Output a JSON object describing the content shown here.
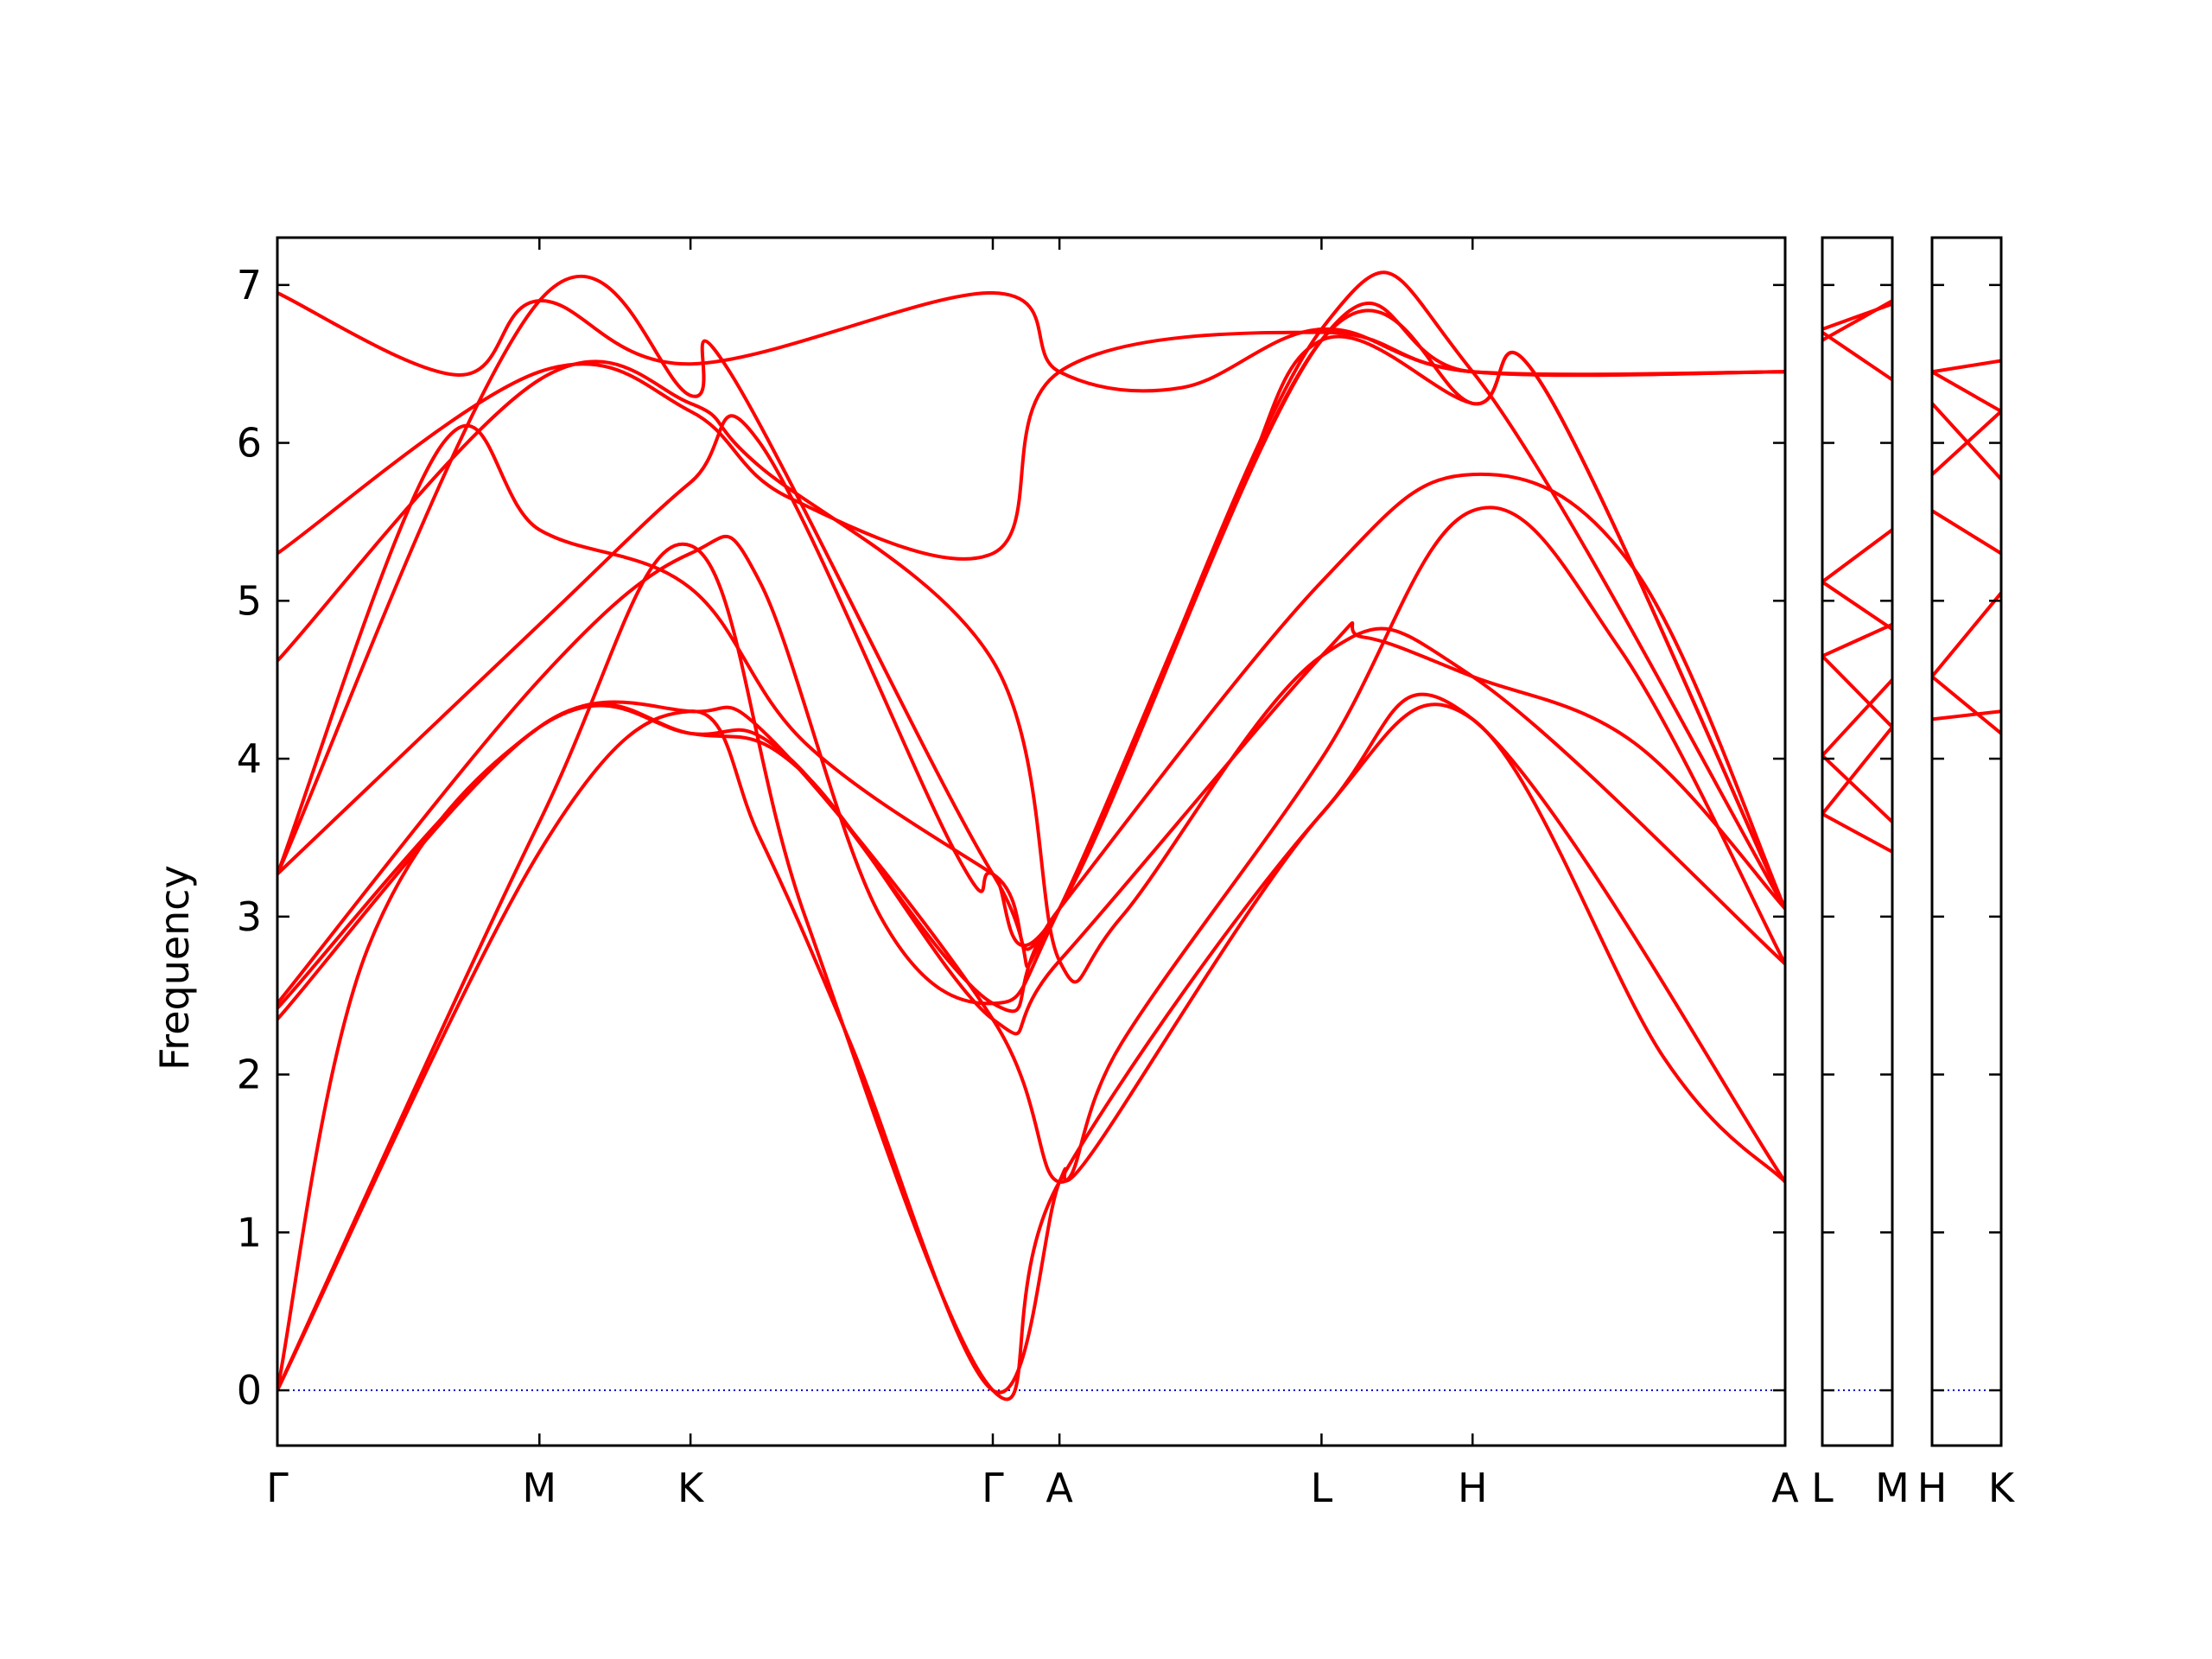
{
  "chart_data": {
    "type": "line",
    "ylabel": "Frequency",
    "xlabel": "",
    "title": "",
    "ylim": [
      -0.35,
      7.3
    ],
    "yticks": [
      0,
      1,
      2,
      3,
      4,
      5,
      6,
      7
    ],
    "grid": false,
    "legend": "none",
    "colors": {
      "bands": "#ff0000",
      "zero_line": "#0000cc",
      "axes": "#000000"
    },
    "panels": [
      {
        "id": "main",
        "x_range": [
          0,
          10.0
        ],
        "points": [
          {
            "label": "Γ",
            "x": 0.0
          },
          {
            "label": "M",
            "x": 1.738
          },
          {
            "label": "K",
            "x": 2.74
          },
          {
            "label": "Γ",
            "x": 4.745
          },
          {
            "label": "A",
            "x": 5.187
          },
          {
            "label": "L",
            "x": 6.925
          },
          {
            "label": "H",
            "x": 7.927
          },
          {
            "label": "A",
            "x": 10.0
          }
        ],
        "series": [
          {
            "values": [
              [
                0.0,
                0.0
              ],
              [
                1.738,
                3.41
              ],
              [
                2.74,
                4.3
              ],
              [
                3.2,
                3.5
              ],
              [
                3.8,
                2.2
              ],
              [
                4.745,
                0.0
              ],
              [
                5.187,
                1.32
              ],
              [
                5.4,
                1.5
              ],
              [
                6.925,
                3.65
              ],
              [
                7.927,
                4.25
              ],
              [
                9.2,
                2.1
              ],
              [
                10.0,
                1.32
              ]
            ]
          },
          {
            "values": [
              [
                0.0,
                0.0
              ],
              [
                1.738,
                3.6
              ],
              [
                2.74,
                5.35
              ],
              [
                3.5,
                3.0
              ],
              [
                4.745,
                0.0
              ],
              [
                5.187,
                1.32
              ],
              [
                6.925,
                3.65
              ],
              [
                7.927,
                4.25
              ],
              [
                10.0,
                1.32
              ]
            ]
          },
          {
            "values": [
              [
                0.0,
                0.0
              ],
              [
                0.6,
                2.8
              ],
              [
                1.738,
                4.2
              ],
              [
                2.74,
                4.3
              ],
              [
                3.3,
                4.1
              ],
              [
                4.745,
                2.35
              ],
              [
                5.187,
                1.32
              ],
              [
                5.6,
                2.2
              ],
              [
                6.925,
                4.0
              ],
              [
                7.927,
                5.57
              ],
              [
                8.9,
                4.7
              ],
              [
                10.0,
                2.7
              ]
            ]
          },
          {
            "values": [
              [
                0.0,
                2.35
              ],
              [
                1.738,
                4.2
              ],
              [
                2.74,
                4.16
              ],
              [
                3.5,
                3.9
              ],
              [
                4.745,
                2.35
              ],
              [
                5.187,
                2.72
              ],
              [
                6.925,
                4.65
              ],
              [
                7.2,
                4.77
              ],
              [
                7.927,
                4.52
              ],
              [
                9.0,
                4.1
              ],
              [
                10.0,
                3.05
              ]
            ]
          },
          {
            "values": [
              [
                0.0,
                2.42
              ],
              [
                1.738,
                4.2
              ],
              [
                2.74,
                4.16
              ],
              [
                3.4,
                4.0
              ],
              [
                4.745,
                2.45
              ],
              [
                5.187,
                3.05
              ],
              [
                6.925,
                5.12
              ],
              [
                7.927,
                5.8
              ],
              [
                9.0,
                5.2
              ],
              [
                10.0,
                3.05
              ]
            ]
          },
          {
            "values": [
              [
                0.0,
                2.45
              ],
              [
                1.738,
                4.5
              ],
              [
                2.74,
                5.3
              ],
              [
                3.2,
                5.12
              ],
              [
                4.0,
                3.0
              ],
              [
                4.745,
                2.45
              ],
              [
                5.187,
                3.05
              ],
              [
                6.3,
                5.5
              ],
              [
                6.925,
                6.65
              ],
              [
                7.927,
                6.25
              ],
              [
                8.4,
                6.35
              ],
              [
                10.0,
                3.05
              ]
            ]
          },
          {
            "values": [
              [
                0.0,
                3.27
              ],
              [
                1.1,
                6.0
              ],
              [
                1.738,
                5.45
              ],
              [
                2.74,
                5.08
              ],
              [
                3.5,
                4.1
              ],
              [
                4.745,
                3.27
              ],
              [
                5.187,
                3.05
              ],
              [
                6.925,
                6.65
              ],
              [
                7.927,
                6.25
              ],
              [
                8.4,
                6.35
              ],
              [
                10.0,
                3.05
              ]
            ]
          },
          {
            "values": [
              [
                0.0,
                3.27
              ],
              [
                1.738,
                4.85
              ],
              [
                2.74,
                5.75
              ],
              [
                3.2,
                6.0
              ],
              [
                4.5,
                3.4
              ],
              [
                4.745,
                3.27
              ],
              [
                5.187,
                3.05
              ],
              [
                6.925,
                6.65
              ],
              [
                7.927,
                6.45
              ],
              [
                10.0,
                6.45
              ]
            ]
          },
          {
            "values": [
              [
                0.0,
                4.62
              ],
              [
                1.738,
                6.4
              ],
              [
                2.74,
                6.25
              ],
              [
                3.2,
                5.85
              ],
              [
                4.745,
                4.62
              ],
              [
                5.187,
                2.72
              ],
              [
                5.6,
                3.0
              ],
              [
                6.925,
                4.65
              ],
              [
                7.927,
                4.52
              ],
              [
                10.0,
                2.7
              ]
            ]
          },
          {
            "values": [
              [
                0.0,
                5.3
              ],
              [
                1.738,
                6.45
              ],
              [
                2.74,
                6.2
              ],
              [
                3.4,
                5.65
              ],
              [
                4.745,
                5.3
              ],
              [
                5.187,
                6.45
              ],
              [
                6.925,
                6.7
              ],
              [
                7.927,
                6.45
              ],
              [
                10.0,
                6.45
              ]
            ]
          },
          {
            "values": [
              [
                0.0,
                6.95
              ],
              [
                1.2,
                6.43
              ],
              [
                1.738,
                6.9
              ],
              [
                2.74,
                6.5
              ],
              [
                4.745,
                6.95
              ],
              [
                5.187,
                6.45
              ],
              [
                6.0,
                6.35
              ],
              [
                6.925,
                6.72
              ],
              [
                7.927,
                6.45
              ],
              [
                10.0,
                6.45
              ]
            ]
          },
          {
            "values": [
              [
                0.0,
                3.27
              ],
              [
                1.738,
                6.9
              ],
              [
                2.74,
                6.3
              ],
              [
                3.0,
                6.45
              ],
              [
                4.745,
                3.27
              ],
              [
                5.187,
                3.05
              ],
              [
                6.925,
                6.72
              ],
              [
                7.927,
                6.45
              ],
              [
                10.0,
                3.05
              ]
            ]
          }
        ]
      },
      {
        "id": "LM",
        "x_range": [
          0,
          1
        ],
        "points": [
          {
            "label": "L",
            "x": 0.0
          },
          {
            "label": "M",
            "x": 1.0
          }
        ],
        "series": [
          {
            "values": [
              [
                0,
                3.65
              ],
              [
                1,
                3.41
              ]
            ]
          },
          {
            "values": [
              [
                0,
                3.65
              ],
              [
                1,
                4.2
              ]
            ]
          },
          {
            "values": [
              [
                0,
                4.02
              ],
              [
                1,
                3.6
              ]
            ]
          },
          {
            "values": [
              [
                0,
                4.02
              ],
              [
                1,
                4.5
              ]
            ]
          },
          {
            "values": [
              [
                0,
                4.65
              ],
              [
                1,
                4.2
              ]
            ]
          },
          {
            "values": [
              [
                0,
                4.65
              ],
              [
                1,
                4.85
              ]
            ]
          },
          {
            "values": [
              [
                0,
                5.12
              ],
              [
                1,
                4.82
              ]
            ]
          },
          {
            "values": [
              [
                0,
                5.12
              ],
              [
                1,
                5.45
              ]
            ]
          },
          {
            "values": [
              [
                0,
                6.65
              ],
              [
                1,
                6.9
              ]
            ]
          },
          {
            "values": [
              [
                0,
                6.7
              ],
              [
                1,
                6.4
              ]
            ]
          },
          {
            "values": [
              [
                0,
                6.72
              ],
              [
                1,
                6.88
              ]
            ]
          }
        ]
      },
      {
        "id": "HK",
        "x_range": [
          0,
          1
        ],
        "points": [
          {
            "label": "H",
            "x": 0.0
          },
          {
            "label": "K",
            "x": 1.0
          }
        ],
        "series": [
          {
            "values": [
              [
                0,
                4.25
              ],
              [
                1,
                4.3
              ]
            ]
          },
          {
            "values": [
              [
                0,
                4.52
              ],
              [
                1,
                4.16
              ]
            ]
          },
          {
            "values": [
              [
                0,
                4.52
              ],
              [
                1,
                5.05
              ]
            ]
          },
          {
            "values": [
              [
                0,
                5.57
              ],
              [
                1,
                5.3
              ]
            ]
          },
          {
            "values": [
              [
                0,
                5.8
              ],
              [
                1,
                6.2
              ]
            ]
          },
          {
            "values": [
              [
                0,
                6.25
              ],
              [
                1,
                5.77
              ]
            ]
          },
          {
            "values": [
              [
                0,
                6.45
              ],
              [
                1,
                6.2
              ]
            ]
          },
          {
            "values": [
              [
                0,
                6.45
              ],
              [
                1,
                6.52
              ]
            ]
          }
        ]
      }
    ]
  }
}
